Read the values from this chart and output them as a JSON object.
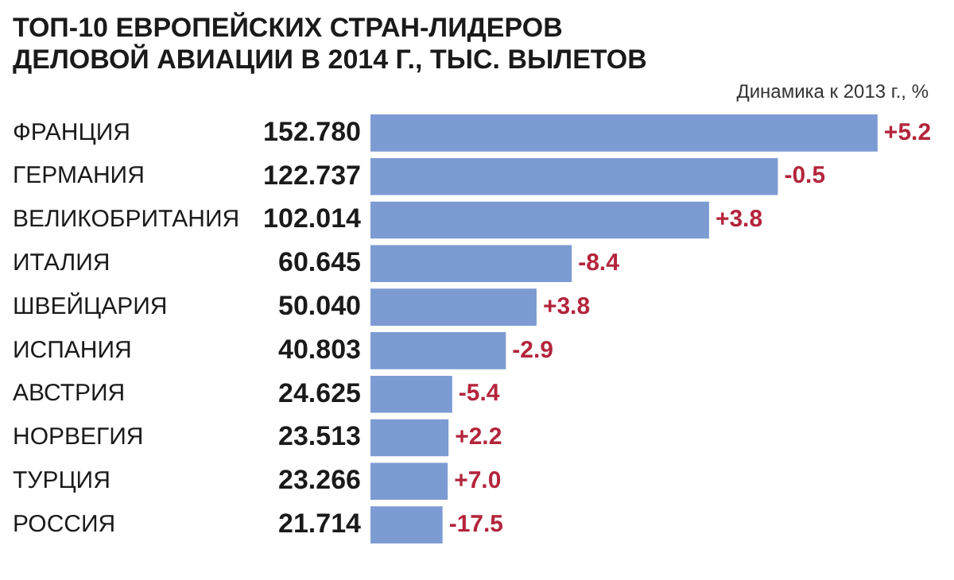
{
  "chart_data": {
    "type": "bar",
    "orientation": "horizontal",
    "title": "ТОП-10 ЕВРОПЕЙСКИХ СТРАН-ЛИДЕРОВ ДЕЛОВОЙ АВИАЦИИ В 2014 Г., ТЫС. ВЫЛЕТОВ",
    "categories": [
      "ФРАНЦИЯ",
      "ГЕРМАНИЯ",
      "ВЕЛИКОБРИТАНИЯ",
      "ИТАЛИЯ",
      "ШВЕЙЦАРИЯ",
      "ИСПАНИЯ",
      "АВСТРИЯ",
      "НОРВЕГИЯ",
      "ТУРЦИЯ",
      "РОССИЯ"
    ],
    "values": [
      152.78,
      122.737,
      102.014,
      60.645,
      50.04,
      40.803,
      24.625,
      23.513,
      23.266,
      21.714
    ],
    "value_labels": [
      "152.780",
      "122.737",
      "102.014",
      "60.645",
      "50.040",
      "40.803",
      "24.625",
      "23.513",
      "23.266",
      "21.714"
    ],
    "color": "#7d9bd3",
    "tick_labels": "y",
    "grid": false,
    "legend": false,
    "annotations": [
      "Динамика к 2013 г., %",
      {
        "text": "+5.2",
        "x": 152.78,
        "y": "ФРАНЦИЯ"
      },
      {
        "text": "-0.5",
        "x": 122.737,
        "y": "ГЕРМАНИЯ"
      },
      {
        "text": "+3.8",
        "x": 102.014,
        "y": "ВЕЛИКОБРИТАНИЯ"
      },
      {
        "text": "-8.4",
        "x": 60.645,
        "y": "ИТАЛИЯ"
      },
      {
        "text": "+3.8",
        "x": 50.04,
        "y": "ШВЕЙЦАРИЯ"
      },
      {
        "text": "-2.9",
        "x": 40.803,
        "y": "ИСПАНИЯ"
      },
      {
        "text": "-5.4",
        "x": 24.625,
        "y": "АВСТРИЯ"
      },
      {
        "text": "+2.2",
        "x": 23.513,
        "y": "НОРВЕГИЯ"
      },
      {
        "text": "+7.0",
        "x": 23.266,
        "y": "ТУРЦИЯ"
      },
      {
        "text": "-17.5",
        "x": 21.714,
        "y": "РОССИЯ"
      }
    ]
  }
}
